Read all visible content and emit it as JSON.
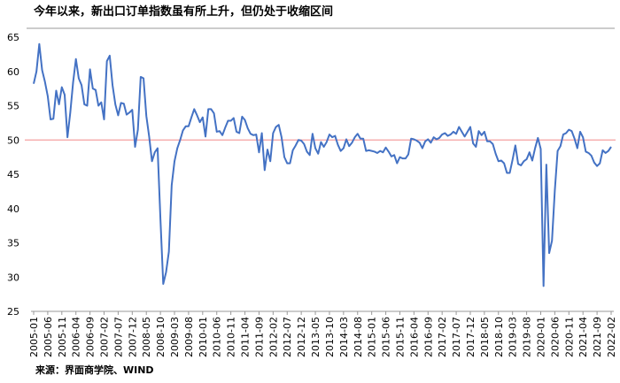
{
  "chart_data": {
    "type": "line",
    "title": "今年以来，新出口订单指数虽有所上升，但仍处于收缩区间",
    "source": "来源：界面商学院、WIND",
    "color": "#4472c4",
    "reference_line": 50,
    "reference_color": "#f4a0a0",
    "ylim": [
      25,
      65
    ],
    "yticks": [
      25,
      30,
      35,
      40,
      45,
      50,
      55,
      60,
      65
    ],
    "categories": [
      "2005-01",
      null,
      null,
      null,
      null,
      "2005-06",
      null,
      null,
      null,
      null,
      "2005-11",
      null,
      null,
      null,
      null,
      "2006-04",
      null,
      null,
      null,
      null,
      "2006-09",
      null,
      null,
      null,
      null,
      "2007-02",
      null,
      null,
      null,
      null,
      "2007-07",
      null,
      null,
      null,
      null,
      "2007-12",
      null,
      null,
      null,
      null,
      "2008-05",
      null,
      null,
      null,
      null,
      "2008-10",
      null,
      null,
      null,
      null,
      "2009-03",
      null,
      null,
      null,
      null,
      "2009-08",
      null,
      null,
      null,
      null,
      "2010-01",
      null,
      null,
      null,
      null,
      "2010-06",
      null,
      null,
      null,
      null,
      "2010-11",
      null,
      null,
      null,
      null,
      "2011-04",
      null,
      null,
      null,
      null,
      "2011-09",
      null,
      null,
      null,
      null,
      "2012-02",
      null,
      null,
      null,
      null,
      "2012-07",
      null,
      null,
      null,
      null,
      "2012-12",
      null,
      null,
      null,
      null,
      "2013-05",
      null,
      null,
      null,
      null,
      "2013-10",
      null,
      null,
      null,
      null,
      "2014-03",
      null,
      null,
      null,
      null,
      "2014-08",
      null,
      null,
      null,
      null,
      "2015-01",
      null,
      null,
      null,
      null,
      "2015-06",
      null,
      null,
      null,
      null,
      "2015-11",
      null,
      null,
      null,
      null,
      "2016-04",
      null,
      null,
      null,
      null,
      "2016-09",
      null,
      null,
      null,
      null,
      "2017-02",
      null,
      null,
      null,
      null,
      "2017-07",
      null,
      null,
      null,
      null,
      "2017-12",
      null,
      null,
      null,
      null,
      "2018-05",
      null,
      null,
      null,
      null,
      "2018-10",
      null,
      null,
      null,
      null,
      "2019-03",
      null,
      null,
      null,
      null,
      "2019-08",
      null,
      null,
      null,
      null,
      "2020-01",
      null,
      null,
      null,
      null,
      "2020-06",
      null,
      null,
      null,
      null,
      "2020-11",
      null,
      null,
      null,
      null,
      "2021-04",
      null,
      null,
      null,
      null,
      "2021-09",
      null,
      null,
      null,
      null,
      "2022-02"
    ],
    "values": [
      58.2,
      60.0,
      64.0,
      60.2,
      58.5,
      56.4,
      53.0,
      53.1,
      57.2,
      55.2,
      57.7,
      56.6,
      50.4,
      54.0,
      58.4,
      61.8,
      59.0,
      58.0,
      55.2,
      55.0,
      60.3,
      57.5,
      57.3,
      55.0,
      55.5,
      53.0,
      61.5,
      62.3,
      58.0,
      55.2,
      53.6,
      55.4,
      55.3,
      53.7,
      54.0,
      54.4,
      49.0,
      51.5,
      59.2,
      59.0,
      53.5,
      50.5,
      46.9,
      48.2,
      48.8,
      38.5,
      29.0,
      30.7,
      33.7,
      43.4,
      46.9,
      48.8,
      50.0,
      51.4,
      52.0,
      52.0,
      53.3,
      54.5,
      53.6,
      52.6,
      53.3,
      50.5,
      54.5,
      54.5,
      53.9,
      51.2,
      51.3,
      50.7,
      51.8,
      52.8,
      52.8,
      53.2,
      51.2,
      51.0,
      53.4,
      52.9,
      51.7,
      50.9,
      50.7,
      50.8,
      48.2,
      51.0,
      45.6,
      48.6,
      46.9,
      51.0,
      51.9,
      52.2,
      50.4,
      47.5,
      46.6,
      46.6,
      48.5,
      49.2,
      50.0,
      49.9,
      49.4,
      48.3,
      47.8,
      50.9,
      48.8,
      48.0,
      49.7,
      49.0,
      49.7,
      50.8,
      50.4,
      50.6,
      49.3,
      48.4,
      48.8,
      50.1,
      49.1,
      49.6,
      50.4,
      50.9,
      50.2,
      50.2,
      48.4,
      48.5,
      48.4,
      48.3,
      48.1,
      48.4,
      48.2,
      48.9,
      48.3,
      47.6,
      47.8,
      46.6,
      47.5,
      47.3,
      47.3,
      47.9,
      50.2,
      50.1,
      49.9,
      49.6,
      48.8,
      49.8,
      50.1,
      49.6,
      50.4,
      50.1,
      50.3,
      50.8,
      51.0,
      50.6,
      50.8,
      51.2,
      50.9,
      51.9,
      51.2,
      50.5,
      51.2,
      51.9,
      49.5,
      49.0,
      51.3,
      50.7,
      51.2,
      49.8,
      49.8,
      49.4,
      48.0,
      46.9,
      47.0,
      46.6,
      45.2,
      45.2,
      47.1,
      49.2,
      46.5,
      46.3,
      46.9,
      47.2,
      48.2,
      47.0,
      48.8,
      50.3,
      48.7,
      28.7,
      46.4,
      33.5,
      35.3,
      42.6,
      48.4,
      49.1,
      50.8,
      51.0,
      51.5,
      51.3,
      50.2,
      48.8,
      51.2,
      50.4,
      48.3,
      48.1,
      47.7,
      46.7,
      46.2,
      46.6,
      48.5,
      48.1,
      48.4,
      49.0
    ]
  }
}
